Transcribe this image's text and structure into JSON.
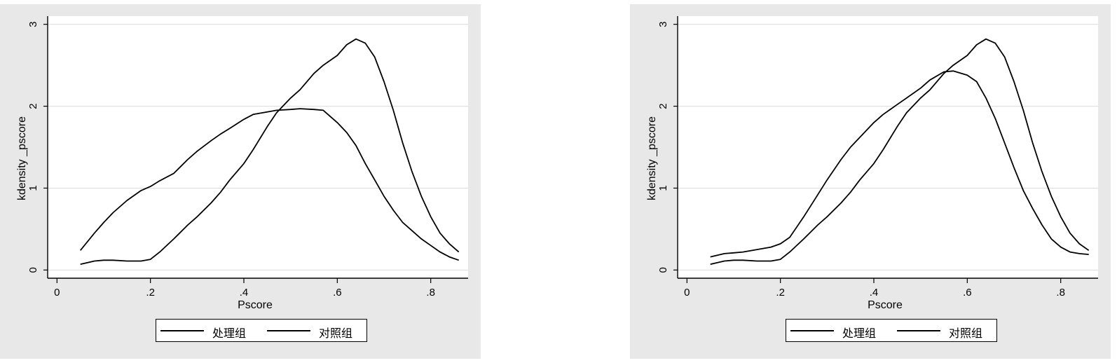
{
  "chart_data": [
    {
      "type": "line",
      "xlabel": "Pscore",
      "ylabel": "kdensity _pscore",
      "xlim": [
        -0.02,
        0.88
      ],
      "ylim": [
        -0.1,
        3.1
      ],
      "x_ticks": [
        "0",
        ".2",
        ".4",
        ".6",
        ".8"
      ],
      "x_tick_values": [
        0,
        0.2,
        0.4,
        0.6,
        0.8
      ],
      "y_ticks": [
        "0",
        "1",
        "2",
        "3"
      ],
      "y_tick_values": [
        0,
        1,
        2,
        3
      ],
      "grid": "horizontal",
      "legend_position": "bottom",
      "series": [
        {
          "name": "处理组",
          "x": [
            0.05,
            0.08,
            0.1,
            0.12,
            0.15,
            0.18,
            0.2,
            0.22,
            0.25,
            0.28,
            0.3,
            0.33,
            0.35,
            0.37,
            0.4,
            0.42,
            0.45,
            0.47,
            0.5,
            0.52,
            0.55,
            0.57,
            0.6,
            0.62,
            0.64,
            0.66,
            0.68,
            0.7,
            0.72,
            0.74,
            0.76,
            0.78,
            0.8,
            0.82,
            0.84,
            0.86
          ],
          "y": [
            0.07,
            0.11,
            0.12,
            0.12,
            0.11,
            0.11,
            0.13,
            0.22,
            0.38,
            0.55,
            0.65,
            0.82,
            0.95,
            1.1,
            1.3,
            1.47,
            1.75,
            1.92,
            2.1,
            2.2,
            2.4,
            2.5,
            2.62,
            2.75,
            2.82,
            2.77,
            2.6,
            2.3,
            1.95,
            1.55,
            1.2,
            0.9,
            0.65,
            0.45,
            0.32,
            0.22
          ]
        },
        {
          "name": "对照组",
          "x": [
            0.05,
            0.08,
            0.1,
            0.12,
            0.15,
            0.18,
            0.2,
            0.22,
            0.25,
            0.28,
            0.3,
            0.33,
            0.35,
            0.37,
            0.4,
            0.42,
            0.45,
            0.47,
            0.5,
            0.52,
            0.55,
            0.57,
            0.6,
            0.62,
            0.64,
            0.66,
            0.68,
            0.7,
            0.72,
            0.74,
            0.76,
            0.78,
            0.8,
            0.82,
            0.84,
            0.86
          ],
          "y": [
            0.24,
            0.45,
            0.58,
            0.7,
            0.85,
            0.97,
            1.02,
            1.09,
            1.18,
            1.35,
            1.45,
            1.58,
            1.66,
            1.73,
            1.84,
            1.9,
            1.93,
            1.95,
            1.96,
            1.97,
            1.96,
            1.95,
            1.8,
            1.68,
            1.52,
            1.3,
            1.1,
            0.9,
            0.73,
            0.58,
            0.48,
            0.38,
            0.3,
            0.22,
            0.16,
            0.12
          ]
        }
      ]
    },
    {
      "type": "line",
      "xlabel": "Pscore",
      "ylabel": "kdensity _pscore",
      "xlim": [
        -0.02,
        0.88
      ],
      "ylim": [
        -0.1,
        3.1
      ],
      "x_ticks": [
        "0",
        ".2",
        ".4",
        ".6",
        ".8"
      ],
      "x_tick_values": [
        0,
        0.2,
        0.4,
        0.6,
        0.8
      ],
      "y_ticks": [
        "0",
        "1",
        "2",
        "3"
      ],
      "y_tick_values": [
        0,
        1,
        2,
        3
      ],
      "grid": "horizontal",
      "legend_position": "bottom",
      "series": [
        {
          "name": "处理组",
          "x": [
            0.05,
            0.08,
            0.1,
            0.12,
            0.15,
            0.18,
            0.2,
            0.22,
            0.25,
            0.28,
            0.3,
            0.33,
            0.35,
            0.37,
            0.4,
            0.42,
            0.45,
            0.47,
            0.5,
            0.52,
            0.55,
            0.57,
            0.6,
            0.62,
            0.64,
            0.66,
            0.68,
            0.7,
            0.72,
            0.74,
            0.76,
            0.78,
            0.8,
            0.82,
            0.84,
            0.86
          ],
          "y": [
            0.07,
            0.11,
            0.12,
            0.12,
            0.11,
            0.11,
            0.13,
            0.22,
            0.38,
            0.55,
            0.65,
            0.82,
            0.95,
            1.1,
            1.3,
            1.47,
            1.75,
            1.92,
            2.1,
            2.2,
            2.4,
            2.5,
            2.62,
            2.75,
            2.82,
            2.77,
            2.6,
            2.3,
            1.95,
            1.55,
            1.2,
            0.9,
            0.65,
            0.45,
            0.32,
            0.24
          ]
        },
        {
          "name": "对照组",
          "x": [
            0.05,
            0.08,
            0.1,
            0.12,
            0.15,
            0.18,
            0.2,
            0.22,
            0.25,
            0.28,
            0.3,
            0.33,
            0.35,
            0.37,
            0.4,
            0.42,
            0.45,
            0.47,
            0.5,
            0.52,
            0.55,
            0.57,
            0.6,
            0.62,
            0.64,
            0.66,
            0.68,
            0.7,
            0.72,
            0.74,
            0.76,
            0.78,
            0.8,
            0.82,
            0.84,
            0.86
          ],
          "y": [
            0.16,
            0.2,
            0.21,
            0.22,
            0.25,
            0.28,
            0.32,
            0.4,
            0.65,
            0.92,
            1.1,
            1.35,
            1.5,
            1.62,
            1.8,
            1.9,
            2.02,
            2.1,
            2.22,
            2.32,
            2.42,
            2.43,
            2.38,
            2.3,
            2.1,
            1.85,
            1.55,
            1.25,
            0.97,
            0.75,
            0.55,
            0.38,
            0.28,
            0.22,
            0.2,
            0.19
          ]
        }
      ]
    }
  ]
}
